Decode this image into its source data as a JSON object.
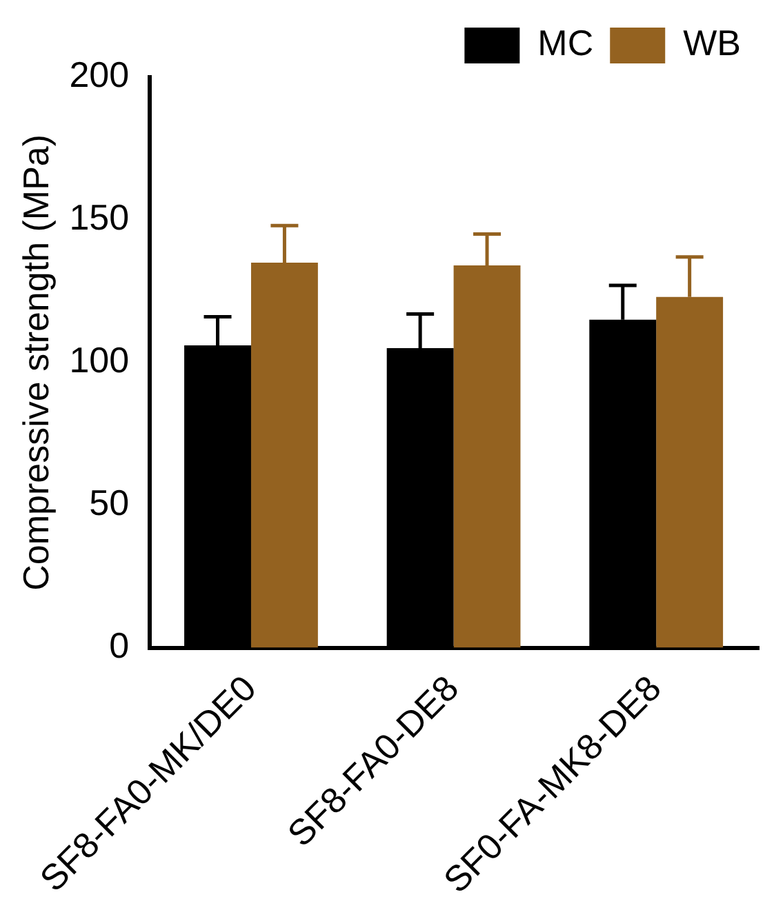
{
  "chart_data": {
    "type": "bar",
    "ylabel": "Compressive strength (MPa)",
    "categories": [
      "SF8-FA0-MK/DE0",
      "SF8-FA0-DE8",
      "SF0-FA-MK8-DE8"
    ],
    "series": [
      {
        "name": "MC",
        "color": "#000000",
        "values": [
          106,
          105,
          115
        ],
        "errors": [
          10,
          12,
          12
        ]
      },
      {
        "name": "WB",
        "color": "#946220",
        "values": [
          135,
          134,
          123
        ],
        "errors": [
          13,
          11,
          14
        ]
      }
    ],
    "ylim": [
      0,
      200
    ],
    "yticks": [
      0,
      50,
      100,
      150,
      200
    ],
    "grid": false,
    "legend": "top"
  }
}
